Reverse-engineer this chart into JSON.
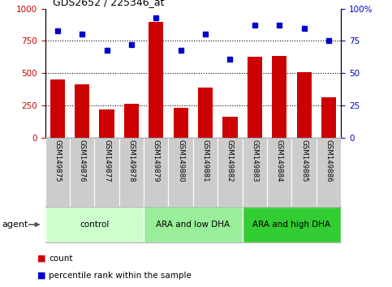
{
  "title": "GDS2652 / 225346_at",
  "categories": [
    "GSM149875",
    "GSM149876",
    "GSM149877",
    "GSM149878",
    "GSM149879",
    "GSM149880",
    "GSM149881",
    "GSM149882",
    "GSM149883",
    "GSM149884",
    "GSM149885",
    "GSM149886"
  ],
  "bar_values": [
    450,
    415,
    220,
    265,
    900,
    230,
    390,
    160,
    630,
    635,
    510,
    315
  ],
  "dot_values": [
    83,
    80,
    68,
    72,
    93,
    68,
    80,
    61,
    87,
    87,
    85,
    75
  ],
  "bar_color": "#cc0000",
  "dot_color": "#0000cc",
  "ylim_left": [
    0,
    1000
  ],
  "ylim_right": [
    0,
    100
  ],
  "yticks_left": [
    0,
    250,
    500,
    750,
    1000
  ],
  "yticks_right": [
    0,
    25,
    50,
    75,
    100
  ],
  "grid_values": [
    250,
    500,
    750
  ],
  "groups": [
    {
      "label": "control",
      "start": 0,
      "end": 4,
      "color": "#ccffcc"
    },
    {
      "label": "ARA and low DHA",
      "start": 4,
      "end": 8,
      "color": "#99ee99"
    },
    {
      "label": "ARA and high DHA",
      "start": 8,
      "end": 12,
      "color": "#33cc33"
    }
  ],
  "agent_label": "agent",
  "legend_bar_label": "count",
  "legend_dot_label": "percentile rank within the sample",
  "tick_label_color_left": "#cc0000",
  "tick_label_color_right": "#0000cc",
  "background_color": "#ffffff",
  "xticklabel_bg": "#cccccc",
  "border_color": "#888888"
}
